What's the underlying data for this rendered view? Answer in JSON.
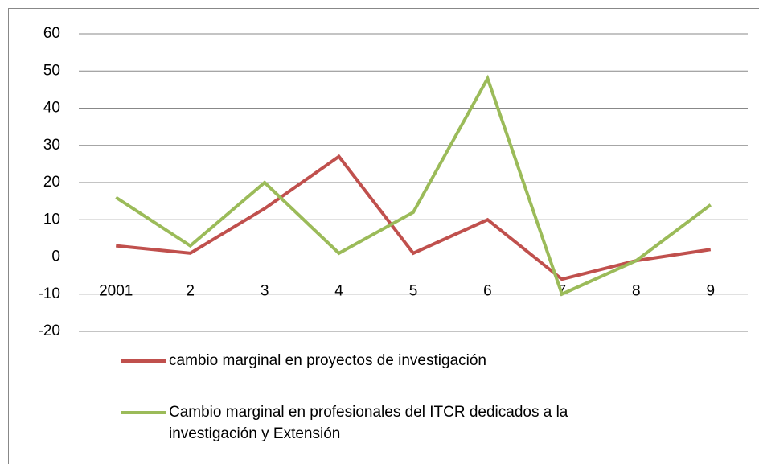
{
  "chart_data": {
    "type": "line",
    "categories": [
      "2001",
      "2",
      "3",
      "4",
      "5",
      "6",
      "7",
      "8",
      "9"
    ],
    "series": [
      {
        "name": "cambio marginal en proyectos de investigación",
        "color": "#c0504d",
        "values": [
          3,
          1,
          13,
          27,
          1,
          10,
          -6,
          -1,
          2
        ]
      },
      {
        "name": "Cambio marginal en profesionales del ITCR dedicados a la investigación y Extensión",
        "color": "#9bbb59",
        "values": [
          16,
          3,
          20,
          1,
          12,
          48,
          -10,
          -1,
          14
        ]
      }
    ],
    "ylim": [
      -20,
      60
    ],
    "yticks": [
      -20,
      -10,
      0,
      10,
      20,
      30,
      40,
      50,
      60
    ],
    "grid": true,
    "legend": "bottom"
  }
}
